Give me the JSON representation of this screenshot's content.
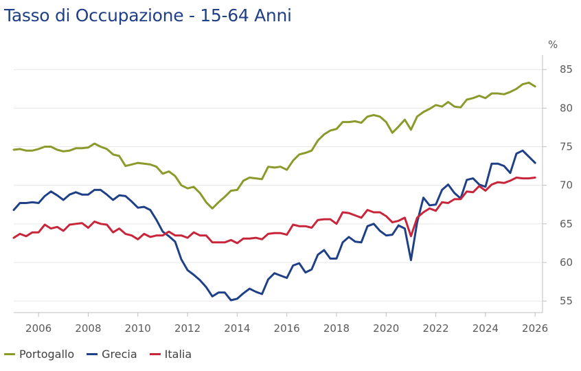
{
  "chart_data": {
    "type": "line",
    "title": "Tasso di Occupazione - 15-64 Anni",
    "unit_label": "%",
    "ylim": [
      53.5,
      86
    ],
    "y_ticks": [
      55,
      60,
      65,
      70,
      75,
      80,
      85
    ],
    "y_tick_labels": [
      "55",
      "60",
      "65",
      "70",
      "75",
      "80",
      "85"
    ],
    "xlim": [
      2005.0,
      2026.3
    ],
    "x_ticks": [
      2006,
      2008,
      2010,
      2012,
      2014,
      2016,
      2018,
      2020,
      2022,
      2024,
      2026
    ],
    "x_tick_labels": [
      "2006",
      "2008",
      "2010",
      "2012",
      "2014",
      "2016",
      "2018",
      "2020",
      "2022",
      "2024",
      "2026"
    ],
    "y_axis_position": "right",
    "grid": "horizontal",
    "legend_position": "bottom-left",
    "x": [
      2005.0,
      2005.25,
      2005.5,
      2005.75,
      2006.0,
      2006.25,
      2006.5,
      2006.75,
      2007.0,
      2007.25,
      2007.5,
      2007.75,
      2008.0,
      2008.25,
      2008.5,
      2008.75,
      2009.0,
      2009.25,
      2009.5,
      2009.75,
      2010.0,
      2010.25,
      2010.5,
      2010.75,
      2011.0,
      2011.25,
      2011.5,
      2011.75,
      2012.0,
      2012.25,
      2012.5,
      2012.75,
      2013.0,
      2013.25,
      2013.5,
      2013.75,
      2014.0,
      2014.25,
      2014.5,
      2014.75,
      2015.0,
      2015.25,
      2015.5,
      2015.75,
      2016.0,
      2016.25,
      2016.5,
      2016.75,
      2017.0,
      2017.25,
      2017.5,
      2017.75,
      2018.0,
      2018.25,
      2018.5,
      2018.75,
      2019.0,
      2019.25,
      2019.5,
      2019.75,
      2020.0,
      2020.25,
      2020.5,
      2020.75,
      2021.0,
      2021.25,
      2021.5,
      2021.75,
      2022.0,
      2022.25,
      2022.5,
      2022.75,
      2023.0,
      2023.25,
      2023.5,
      2023.75,
      2024.0,
      2024.25,
      2024.5,
      2024.75,
      2025.0,
      2025.25,
      2025.5,
      2025.75,
      2026.0
    ],
    "series": [
      {
        "name": "Portogallo",
        "color": "#8b9a2b",
        "values": [
          74.6,
          74.7,
          74.5,
          74.5,
          74.7,
          75.0,
          75.0,
          74.6,
          74.4,
          74.5,
          74.8,
          74.8,
          74.9,
          75.4,
          75.0,
          74.7,
          74.0,
          73.8,
          72.5,
          72.7,
          72.9,
          72.8,
          72.7,
          72.4,
          71.5,
          71.8,
          71.2,
          70.0,
          69.6,
          69.8,
          69.0,
          67.8,
          67.0,
          67.8,
          68.5,
          69.3,
          69.4,
          70.6,
          71.0,
          70.9,
          70.8,
          72.4,
          72.3,
          72.4,
          72.0,
          73.2,
          74.0,
          74.2,
          74.5,
          75.8,
          76.6,
          77.1,
          77.3,
          78.2,
          78.2,
          78.3,
          78.1,
          78.9,
          79.1,
          78.9,
          78.2,
          76.8,
          77.6,
          78.5,
          77.2,
          78.9,
          79.5,
          79.9,
          80.4,
          80.2,
          80.8,
          80.2,
          80.1,
          81.1,
          81.3,
          81.6,
          81.3,
          81.9,
          81.9,
          81.8,
          82.1,
          82.5,
          83.1,
          83.3,
          82.8
        ]
      },
      {
        "name": "Grecia",
        "color": "#1f3f86",
        "values": [
          66.8,
          67.7,
          67.7,
          67.8,
          67.7,
          68.6,
          69.2,
          68.7,
          68.1,
          68.8,
          69.1,
          68.8,
          68.8,
          69.4,
          69.4,
          68.8,
          68.1,
          68.7,
          68.6,
          67.9,
          67.1,
          67.2,
          66.8,
          65.5,
          64.0,
          63.4,
          62.7,
          60.4,
          59.0,
          58.4,
          57.7,
          56.8,
          55.6,
          56.1,
          56.1,
          55.1,
          55.3,
          56.0,
          56.6,
          56.2,
          55.9,
          57.8,
          58.6,
          58.3,
          58.0,
          59.6,
          59.9,
          58.7,
          59.1,
          61.0,
          61.6,
          60.5,
          60.5,
          62.6,
          63.3,
          62.7,
          62.6,
          64.7,
          65.0,
          64.1,
          63.5,
          63.6,
          64.8,
          64.4,
          60.3,
          65.2,
          68.4,
          67.4,
          67.5,
          69.4,
          70.1,
          69.0,
          68.3,
          70.7,
          70.9,
          70.1,
          69.8,
          72.8,
          72.8,
          72.5,
          71.6,
          74.1,
          74.5,
          73.7,
          72.9
        ]
      },
      {
        "name": "Italia",
        "color": "#c8253b",
        "values": [
          63.2,
          63.7,
          63.4,
          63.9,
          63.9,
          64.9,
          64.4,
          64.6,
          64.1,
          64.9,
          65.0,
          65.1,
          64.5,
          65.3,
          65.0,
          64.9,
          63.9,
          64.4,
          63.7,
          63.5,
          63.0,
          63.7,
          63.3,
          63.5,
          63.5,
          64.0,
          63.5,
          63.5,
          63.2,
          63.9,
          63.5,
          63.5,
          62.6,
          62.6,
          62.6,
          62.9,
          62.5,
          63.1,
          63.1,
          63.2,
          63.0,
          63.7,
          63.8,
          63.8,
          63.6,
          64.9,
          64.7,
          64.7,
          64.5,
          65.5,
          65.6,
          65.6,
          65.0,
          66.5,
          66.4,
          66.1,
          65.8,
          66.8,
          66.5,
          66.5,
          66.0,
          65.2,
          65.4,
          65.8,
          63.4,
          65.8,
          66.5,
          67.0,
          66.7,
          67.8,
          67.7,
          68.2,
          68.2,
          69.2,
          69.1,
          69.9,
          69.3,
          70.1,
          70.4,
          70.3,
          70.6,
          71.0,
          70.9,
          70.9,
          71.0
        ]
      }
    ]
  }
}
